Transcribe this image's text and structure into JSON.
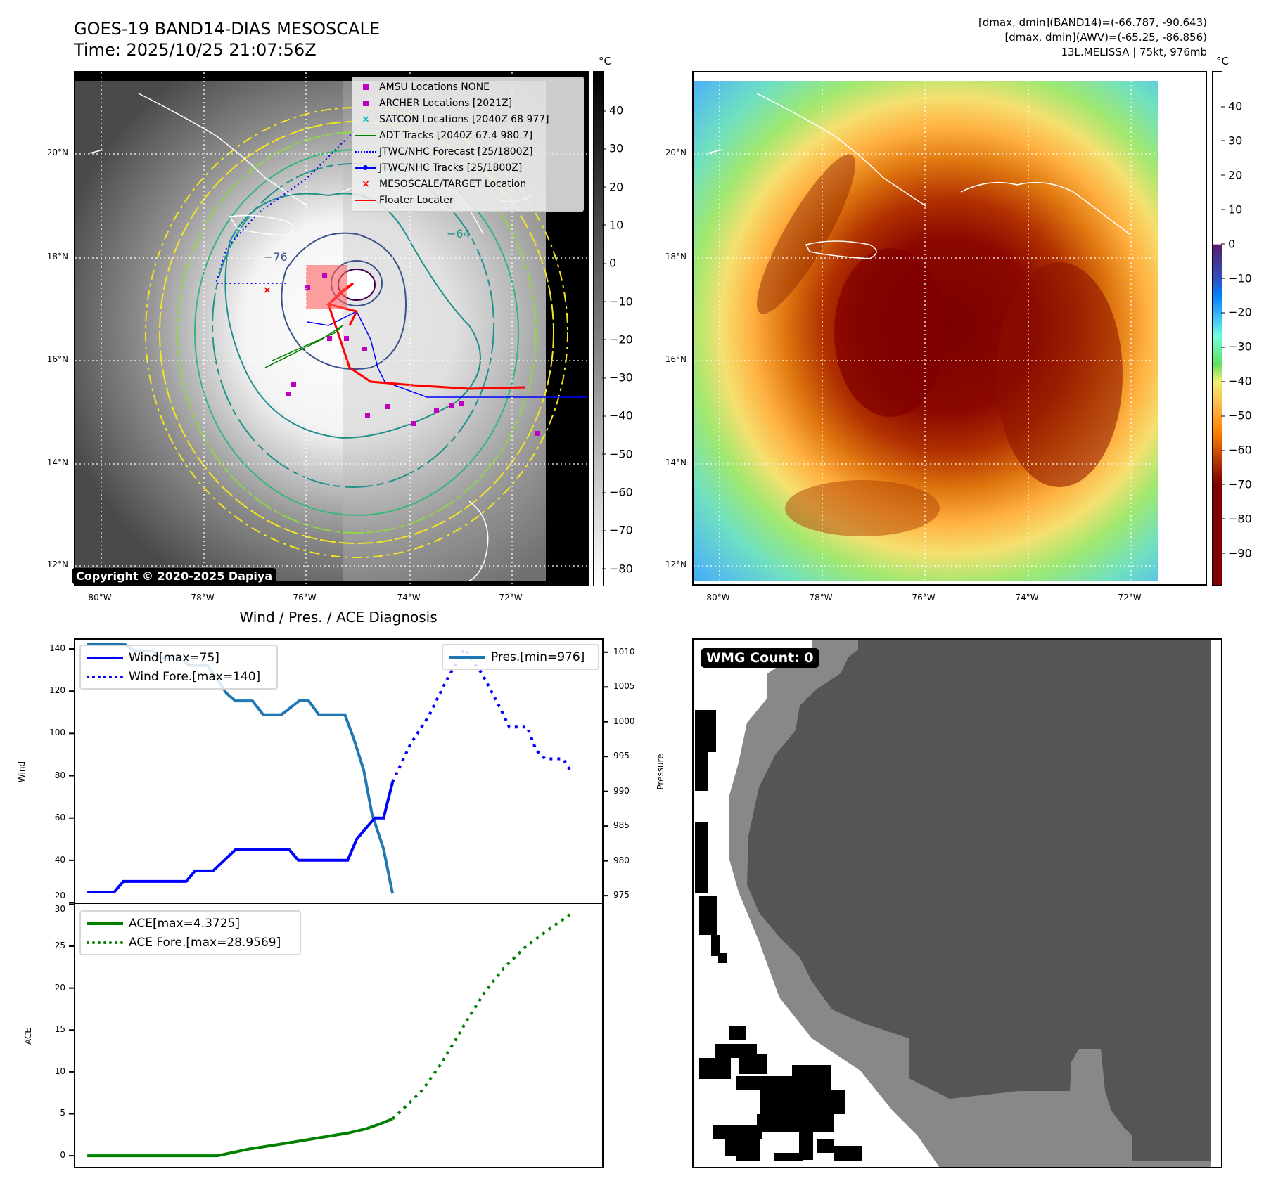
{
  "header": {
    "title": "GOES-19 BAND14-DIAS MESOSCALE",
    "time": "Time: 2025/10/25 21:07:56Z",
    "stats": [
      "[dmax, dmin](BAND14)=(-66.787, -90.643)",
      "[dmax, dmin](AWV)=(-65.25, -86.856)",
      "13L.MELISSA | 75kt, 976mb"
    ]
  },
  "map": {
    "lat_labels": [
      "20°N",
      "18°N",
      "16°N",
      "14°N",
      "12°N"
    ],
    "lon_labels": [
      "80°W",
      "78°W",
      "76°W",
      "74°W",
      "72°W"
    ],
    "contour_labels": [
      "−76",
      "−64"
    ],
    "copyright": "Copyright © 2020-2025 Dapiya",
    "legend": [
      {
        "label": "AMSU Locations NONE",
        "icon": "square-marker",
        "color": "#c000c0"
      },
      {
        "label": "ARCHER Locations [2021Z]",
        "icon": "square-marker",
        "color": "#c000c0"
      },
      {
        "label": "SATCON Locations [2040Z 68 977]",
        "icon": "x-marker",
        "color": "#00c0c0"
      },
      {
        "label": "ADT Tracks [2040Z 67.4 980.7]",
        "icon": "solid-line",
        "color": "#008000"
      },
      {
        "label": "JTWC/NHC Forecast [25/1800Z]",
        "icon": "dotted-line",
        "color": "#0000ff"
      },
      {
        "label": "JTWC/NHC Tracks [25/1800Z]",
        "icon": "line-dot",
        "color": "#0000ff"
      },
      {
        "label": "MESOSCALE/TARGET Location",
        "icon": "x-marker",
        "color": "#ff0000"
      },
      {
        "label": "Floater Locater",
        "icon": "solid-line",
        "color": "#ff0000"
      }
    ],
    "colorbar_unit": "°C",
    "colorbar_ticks": [
      "40",
      "30",
      "20",
      "10",
      "0",
      "−10",
      "−20",
      "−30",
      "−40",
      "−50",
      "−60",
      "−70",
      "−80"
    ]
  },
  "awv_map": {
    "lat_labels": [
      "20°N",
      "18°N",
      "16°N",
      "14°N",
      "12°N"
    ],
    "lon_labels": [
      "80°W",
      "78°W",
      "76°W",
      "74°W",
      "72°W"
    ],
    "colorbar_unit": "°C",
    "colorbar_ticks": [
      "40",
      "30",
      "20",
      "10",
      "0",
      "−10",
      "−20",
      "−30",
      "−40",
      "−50",
      "−60",
      "−70",
      "−80",
      "−90"
    ]
  },
  "chart_data": {
    "type": "line",
    "title": "Wind / Pres. / ACE Diagnosis",
    "upper": {
      "ylabel": "Wind",
      "y2label": "Pressure",
      "ylim": [
        20,
        145
      ],
      "y2lim": [
        974,
        1012
      ],
      "yticks": [
        "20",
        "40",
        "60",
        "80",
        "100",
        "120",
        "140"
      ],
      "y2ticks": [
        "975",
        "980",
        "985",
        "990",
        "995",
        "1000",
        "1005",
        "1010"
      ],
      "series": [
        {
          "name": "Wind[max=75]",
          "style": "solid",
          "color": "#0000ff",
          "points": [
            [
              0,
              25
            ],
            [
              3,
              25
            ],
            [
              4,
              30
            ],
            [
              11,
              30
            ],
            [
              12,
              35
            ],
            [
              14,
              35
            ],
            [
              16.5,
              45
            ],
            [
              22.5,
              45
            ],
            [
              23.5,
              40
            ],
            [
              29,
              40
            ],
            [
              30,
              50
            ],
            [
              32,
              60
            ],
            [
              33,
              60
            ],
            [
              34,
              77
            ]
          ]
        },
        {
          "name": "Wind Fore.[max=140]",
          "style": "dotted",
          "color": "#0000ff",
          "points": [
            [
              34,
              77
            ],
            [
              36,
              95
            ],
            [
              38,
              108
            ],
            [
              40,
              125
            ],
            [
              42,
              140
            ],
            [
              44,
              128
            ],
            [
              46,
              112
            ],
            [
              47,
              103
            ],
            [
              49,
              103
            ],
            [
              50,
              92
            ],
            [
              51,
              88
            ],
            [
              53,
              88
            ],
            [
              54,
              81
            ]
          ]
        },
        {
          "name": "Pres.[min=976]",
          "style": "solid",
          "color": "#1f77b4",
          "axis": "right",
          "points": [
            [
              0,
              1011.1
            ],
            [
              4.2,
              1011.1
            ],
            [
              5.3,
              1010.2
            ],
            [
              7.2,
              1010.2
            ],
            [
              8.3,
              1009.1
            ],
            [
              10.3,
              1009.1
            ],
            [
              11.4,
              1008.1
            ],
            [
              13.4,
              1008.1
            ],
            [
              15.5,
              1004.1
            ],
            [
              16.5,
              1003
            ],
            [
              18.4,
              1003
            ],
            [
              19.6,
              1001
            ],
            [
              21.6,
              1001
            ],
            [
              23.7,
              1003.1
            ],
            [
              24.6,
              1003.1
            ],
            [
              25.8,
              1001
            ],
            [
              28.7,
              1001
            ],
            [
              29.7,
              997.5
            ],
            [
              30.8,
              993
            ],
            [
              31.7,
              986.8
            ],
            [
              33,
              981.7
            ],
            [
              34,
              975.3
            ]
          ]
        }
      ]
    },
    "lower": {
      "ylabel": "ACE",
      "ylim": [
        -1.5,
        30.2
      ],
      "yticks": [
        "0",
        "5",
        "10",
        "15",
        "20",
        "25",
        "30"
      ],
      "series": [
        {
          "name": "ACE[max=4.3725]",
          "style": "solid",
          "color": "#008000",
          "points": [
            [
              0,
              0
            ],
            [
              14.5,
              0
            ],
            [
              18,
              0.8
            ],
            [
              22.8,
              1.6
            ],
            [
              29,
              2.7
            ],
            [
              31,
              3.2
            ],
            [
              32.6,
              3.8
            ],
            [
              34,
              4.4
            ]
          ]
        },
        {
          "name": "ACE Fore.[max=28.9569]",
          "style": "dotted",
          "color": "#008000",
          "points": [
            [
              34,
              4.4
            ],
            [
              35,
              5.4
            ],
            [
              37.3,
              7.8
            ],
            [
              39.3,
              10.8
            ],
            [
              41,
              13.8
            ],
            [
              42.6,
              16.7
            ],
            [
              44.4,
              19.7
            ],
            [
              46.4,
              22.4
            ],
            [
              48.8,
              24.9
            ],
            [
              51.4,
              27
            ],
            [
              54,
              28.96
            ]
          ]
        }
      ]
    },
    "xlim": [
      -1.5,
      57.5
    ]
  },
  "wmg": {
    "label": "WMG Count: 0"
  }
}
